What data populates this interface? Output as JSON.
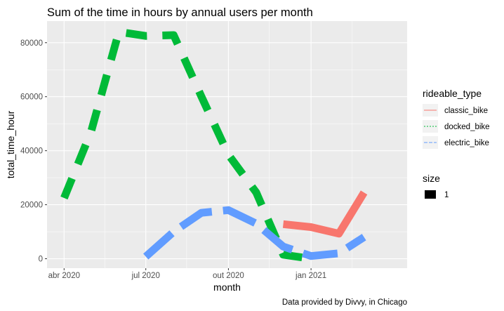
{
  "chart_data": {
    "type": "line",
    "title": "Sum of the time in hours by annual users per month",
    "xlabel": "month",
    "ylabel": "total_time_hour",
    "caption": "Data provided by Divvy, in Chicago",
    "x_ticks": [
      {
        "date": "2020-04-01",
        "label": "abr 2020"
      },
      {
        "date": "2020-07-01",
        "label": "jul 2020"
      },
      {
        "date": "2020-10-01",
        "label": "out 2020"
      },
      {
        "date": "2021-01-01",
        "label": "jan 2021"
      }
    ],
    "xlim": [
      "2020-03-13",
      "2021-04-18"
    ],
    "y_ticks": [
      0,
      20000,
      40000,
      60000,
      80000
    ],
    "ylim": [
      -3500,
      88000
    ],
    "grid": true,
    "legend_position": "right",
    "series": [
      {
        "name": "classic_bike",
        "color": "#F8766D",
        "linetype": "solid",
        "points": [
          {
            "x": "2020-12-01",
            "y": 12800
          },
          {
            "x": "2021-01-01",
            "y": 11700
          },
          {
            "x": "2021-02-01",
            "y": 9300
          },
          {
            "x": "2021-03-01",
            "y": 24500
          }
        ]
      },
      {
        "name": "docked_bike",
        "color": "#00BA38",
        "linetype": "dashed",
        "points": [
          {
            "x": "2020-04-01",
            "y": 22500
          },
          {
            "x": "2020-05-01",
            "y": 47000
          },
          {
            "x": "2020-06-01",
            "y": 84000
          },
          {
            "x": "2020-07-01",
            "y": 82500
          },
          {
            "x": "2020-08-01",
            "y": 82800
          },
          {
            "x": "2020-09-01",
            "y": 60000
          },
          {
            "x": "2020-10-01",
            "y": 38500
          },
          {
            "x": "2020-11-01",
            "y": 24500
          },
          {
            "x": "2020-12-01",
            "y": 1500
          },
          {
            "x": "2021-01-01",
            "y": 0
          }
        ]
      },
      {
        "name": "electric_bike",
        "color": "#619CFF",
        "linetype": "longdash",
        "points": [
          {
            "x": "2020-07-01",
            "y": 800
          },
          {
            "x": "2020-08-01",
            "y": 10000
          },
          {
            "x": "2020-09-01",
            "y": 17000
          },
          {
            "x": "2020-10-01",
            "y": 18000
          },
          {
            "x": "2020-11-01",
            "y": 13000
          },
          {
            "x": "2020-12-01",
            "y": 4500
          },
          {
            "x": "2021-01-01",
            "y": 1000
          },
          {
            "x": "2021-02-01",
            "y": 2000
          },
          {
            "x": "2021-03-01",
            "y": 8000
          }
        ]
      }
    ],
    "legend": {
      "color_title": "rideable_type",
      "color_entries": [
        "classic_bike",
        "docked_bike",
        "electric_bike"
      ],
      "size_title": "size",
      "size_entries": [
        "1"
      ]
    }
  }
}
